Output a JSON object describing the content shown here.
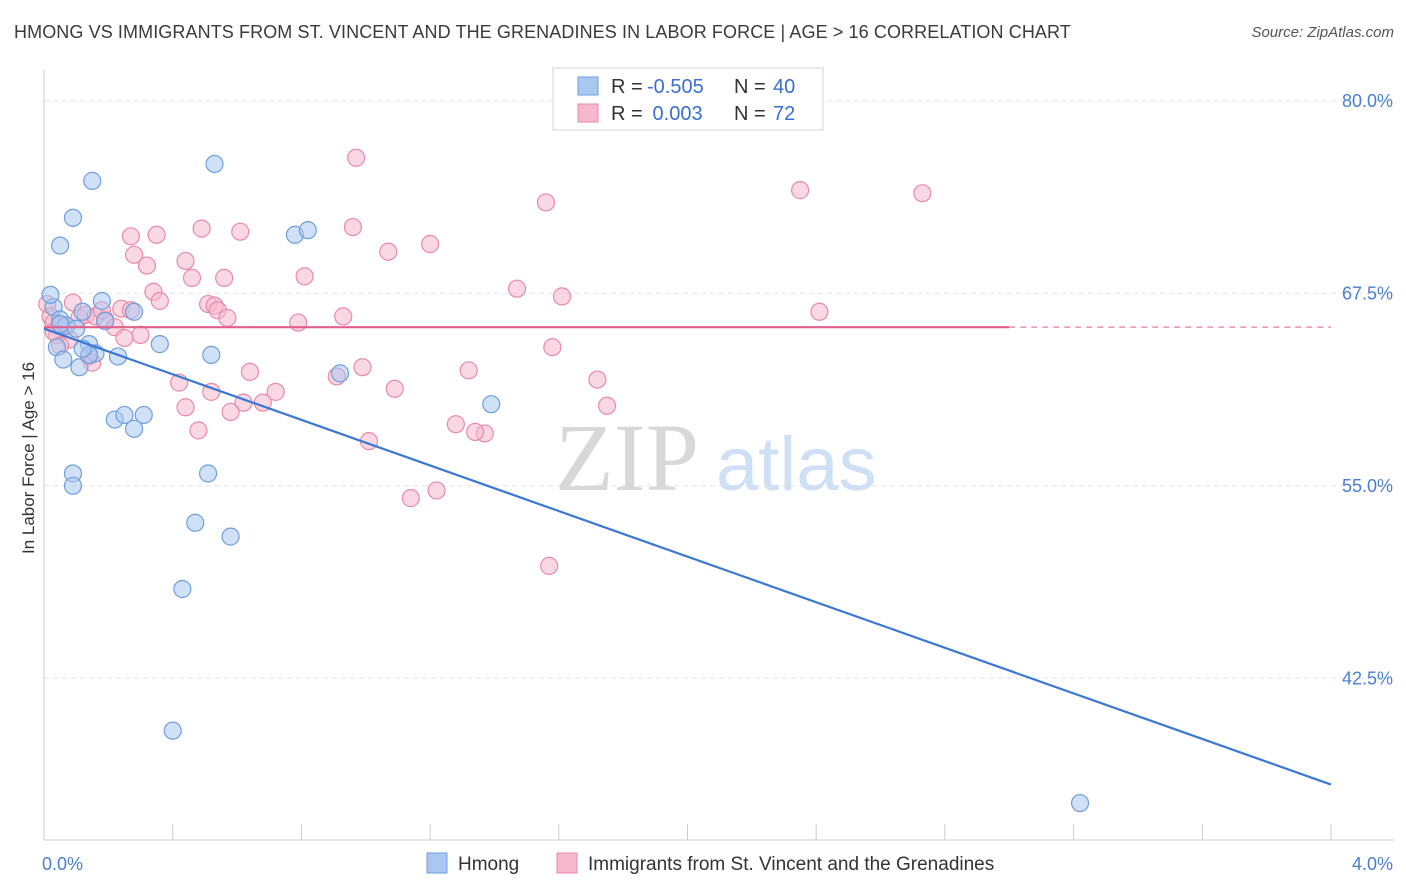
{
  "header": {
    "title": "HMONG VS IMMIGRANTS FROM ST. VINCENT AND THE GRENADINES IN LABOR FORCE | AGE > 16 CORRELATION CHART",
    "source": "Source: ZipAtlas.com"
  },
  "watermark": {
    "zip": "ZIP",
    "atlas": "atlas"
  },
  "stats_box": {
    "rows": [
      {
        "r_label": "R =",
        "r_value": "-0.505",
        "n_label": "N =",
        "n_value": "40",
        "color": "#a9c7f0"
      },
      {
        "r_label": "R =",
        "r_value": " 0.003",
        "n_label": "N =",
        "n_value": "72",
        "color": "#f6b8cc"
      }
    ]
  },
  "chart_data": {
    "type": "scatter",
    "ylabel": "In Labor Force | Age > 16",
    "xlim": [
      0,
      4.0
    ],
    "ylim": [
      32.0,
      82.0
    ],
    "x_tick_labels": [
      "0.0%",
      "4.0%"
    ],
    "y_ticks": [
      {
        "value": 80.0,
        "label": "80.0%"
      },
      {
        "value": 67.5,
        "label": "67.5%"
      },
      {
        "value": 55.0,
        "label": "55.0%"
      },
      {
        "value": 42.5,
        "label": "42.5%"
      }
    ],
    "grid": true,
    "series": [
      {
        "name": "Hmong",
        "color": "#a9c7f0",
        "stroke": "#6f9fdc",
        "trend_color": "#3b78d4",
        "trend": {
          "x0": 0.0,
          "y0": 65.2,
          "x1": 4.0,
          "y1": 35.6
        },
        "points": [
          [
            0.03,
            66.6
          ],
          [
            0.02,
            67.4
          ],
          [
            0.05,
            65.8
          ],
          [
            0.07,
            65.4
          ],
          [
            0.04,
            64.0
          ],
          [
            0.06,
            63.2
          ],
          [
            0.05,
            70.6
          ],
          [
            0.09,
            72.4
          ],
          [
            0.15,
            74.8
          ],
          [
            0.18,
            67.0
          ],
          [
            0.12,
            66.3
          ],
          [
            0.19,
            65.7
          ],
          [
            0.1,
            65.2
          ],
          [
            0.14,
            64.2
          ],
          [
            0.16,
            63.6
          ],
          [
            0.11,
            62.7
          ],
          [
            0.14,
            63.5
          ],
          [
            0.23,
            63.4
          ],
          [
            0.28,
            66.3
          ],
          [
            0.36,
            64.2
          ],
          [
            0.52,
            63.5
          ],
          [
            0.53,
            75.9
          ],
          [
            0.31,
            59.6
          ],
          [
            0.28,
            58.7
          ],
          [
            0.22,
            59.3
          ],
          [
            0.25,
            59.6
          ],
          [
            0.09,
            55.8
          ],
          [
            0.09,
            55.0
          ],
          [
            0.51,
            55.8
          ],
          [
            0.47,
            52.6
          ],
          [
            0.58,
            51.7
          ],
          [
            0.43,
            48.3
          ],
          [
            0.4,
            39.1
          ],
          [
            0.78,
            71.3
          ],
          [
            0.82,
            71.6
          ],
          [
            0.92,
            62.3
          ],
          [
            1.39,
            60.3
          ],
          [
            3.22,
            34.4
          ],
          [
            0.05,
            65.5
          ],
          [
            0.12,
            63.9
          ]
        ]
      },
      {
        "name": "Immigrants from St. Vincent and the Grenadines",
        "color": "#f6b8cc",
        "stroke": "#e98aa8",
        "trend_color": "#e0608a",
        "trend": {
          "x0": 0.0,
          "y0": 65.3,
          "x1": 3.0,
          "y1": 65.3
        },
        "trend_dashed_to": 4.0,
        "points": [
          [
            0.01,
            66.8
          ],
          [
            0.02,
            66.0
          ],
          [
            0.03,
            65.6
          ],
          [
            0.04,
            64.8
          ],
          [
            0.06,
            65.3
          ],
          [
            0.08,
            64.5
          ],
          [
            0.09,
            66.9
          ],
          [
            0.11,
            65.9
          ],
          [
            0.13,
            66.1
          ],
          [
            0.16,
            66.0
          ],
          [
            0.19,
            65.8
          ],
          [
            0.22,
            65.3
          ],
          [
            0.24,
            66.5
          ],
          [
            0.27,
            66.4
          ],
          [
            0.3,
            64.8
          ],
          [
            0.25,
            64.6
          ],
          [
            0.14,
            63.4
          ],
          [
            0.15,
            63.0
          ],
          [
            0.27,
            71.2
          ],
          [
            0.28,
            70.0
          ],
          [
            0.32,
            69.3
          ],
          [
            0.35,
            71.3
          ],
          [
            0.34,
            67.6
          ],
          [
            0.36,
            67.0
          ],
          [
            0.42,
            61.7
          ],
          [
            0.44,
            69.6
          ],
          [
            0.46,
            68.5
          ],
          [
            0.49,
            71.7
          ],
          [
            0.51,
            66.8
          ],
          [
            0.53,
            66.7
          ],
          [
            0.54,
            66.4
          ],
          [
            0.57,
            65.9
          ],
          [
            0.56,
            68.5
          ],
          [
            0.61,
            71.5
          ],
          [
            0.62,
            60.4
          ],
          [
            0.58,
            59.8
          ],
          [
            0.52,
            61.1
          ],
          [
            0.48,
            58.6
          ],
          [
            0.44,
            60.1
          ],
          [
            0.64,
            62.4
          ],
          [
            0.68,
            60.4
          ],
          [
            0.72,
            61.1
          ],
          [
            0.79,
            65.6
          ],
          [
            0.81,
            68.6
          ],
          [
            0.91,
            62.1
          ],
          [
            0.93,
            66.0
          ],
          [
            0.96,
            71.8
          ],
          [
            0.99,
            62.7
          ],
          [
            0.97,
            76.3
          ],
          [
            1.01,
            57.9
          ],
          [
            1.07,
            70.2
          ],
          [
            1.09,
            61.3
          ],
          [
            1.14,
            54.2
          ],
          [
            1.2,
            70.7
          ],
          [
            1.22,
            54.7
          ],
          [
            1.28,
            59.0
          ],
          [
            1.32,
            62.5
          ],
          [
            1.37,
            58.4
          ],
          [
            1.34,
            58.5
          ],
          [
            1.47,
            67.8
          ],
          [
            1.58,
            64.0
          ],
          [
            1.57,
            49.8
          ],
          [
            1.61,
            67.3
          ],
          [
            1.56,
            73.4
          ],
          [
            1.72,
            61.9
          ],
          [
            1.75,
            60.2
          ],
          [
            2.35,
            74.2
          ],
          [
            2.41,
            66.3
          ],
          [
            2.73,
            74.0
          ],
          [
            0.03,
            65.0
          ],
          [
            0.05,
            64.1
          ],
          [
            0.18,
            66.4
          ]
        ]
      }
    ],
    "legend": {
      "position": "bottom-center"
    }
  }
}
